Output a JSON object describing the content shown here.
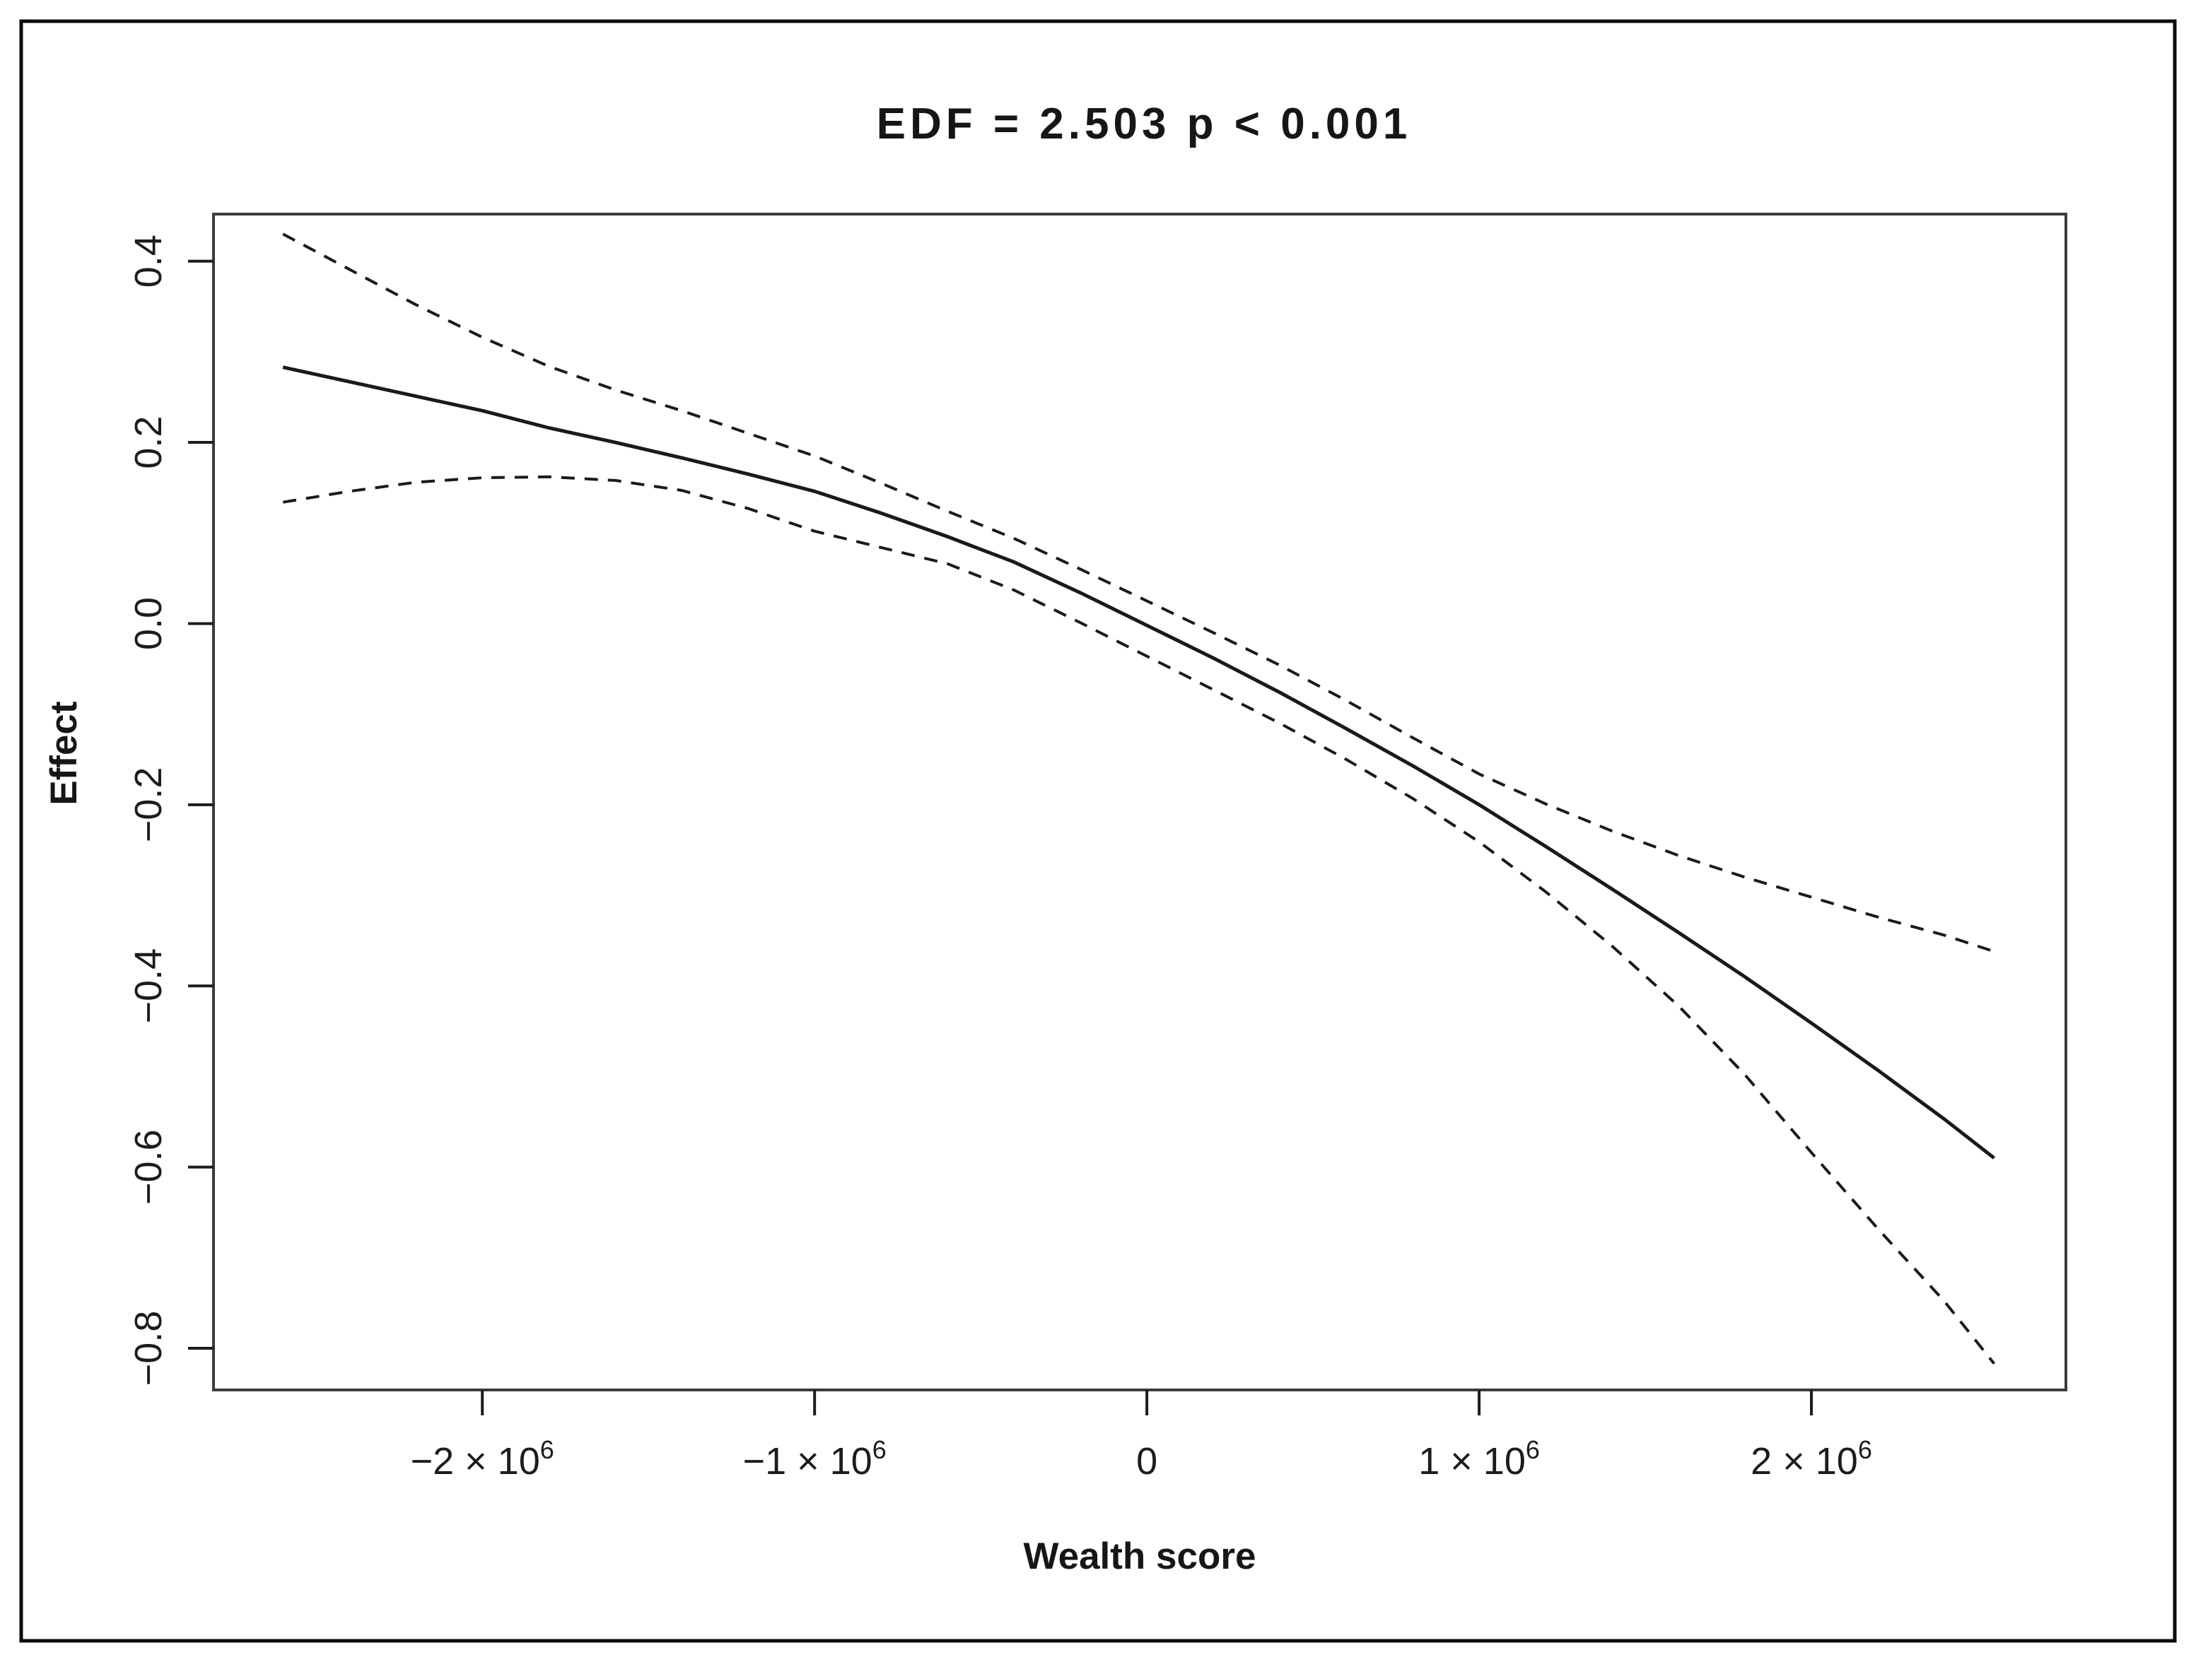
{
  "chart_data": {
    "type": "line",
    "title": "EDF = 2.503 p < 0.001",
    "xlabel": "Wealth score",
    "ylabel": "Effect",
    "legend": "none",
    "grid": false,
    "frame_box": true,
    "colors": {
      "line": "#1a1a1a",
      "frame": "#3c3c3c",
      "background": "#ffffff"
    },
    "xlim": [
      -2809000,
      2766000
    ],
    "ylim": [
      -0.846,
      0.452
    ],
    "x_ticks": [
      {
        "value": -2000000,
        "label": "−2 × 10",
        "sup": "6"
      },
      {
        "value": -1000000,
        "label": "−1 × 10",
        "sup": "6"
      },
      {
        "value": 0,
        "label": "0",
        "sup": ""
      },
      {
        "value": 1000000,
        "label": "1 × 10",
        "sup": "6"
      },
      {
        "value": 2000000,
        "label": "2 × 10",
        "sup": "6"
      }
    ],
    "y_ticks": [
      {
        "value": 0.4,
        "label": "0.4"
      },
      {
        "value": 0.2,
        "label": "0.2"
      },
      {
        "value": 0.0,
        "label": "0.0"
      },
      {
        "value": -0.2,
        "label": "−0.2"
      },
      {
        "value": -0.4,
        "label": "−0.4"
      },
      {
        "value": -0.6,
        "label": "−0.6"
      },
      {
        "value": -0.8,
        "label": "−0.8"
      }
    ],
    "series": [
      {
        "name": "smooth-estimate",
        "style": "solid",
        "x": [
          -2600000,
          -2400000,
          -2200000,
          -2000000,
          -1800000,
          -1600000,
          -1400000,
          -1200000,
          -1000000,
          -800000,
          -600000,
          -400000,
          -200000,
          0,
          200000,
          400000,
          600000,
          800000,
          1000000,
          1200000,
          1400000,
          1600000,
          1800000,
          2000000,
          2200000,
          2400000,
          2550000
        ],
        "y": [
          0.283,
          0.267,
          0.251,
          0.235,
          0.216,
          0.2,
          0.183,
          0.165,
          0.146,
          0.122,
          0.096,
          0.068,
          0.034,
          -0.002,
          -0.038,
          -0.076,
          -0.116,
          -0.157,
          -0.2,
          -0.246,
          -0.293,
          -0.341,
          -0.39,
          -0.441,
          -0.493,
          -0.547,
          -0.59
        ]
      },
      {
        "name": "upper-confidence-band",
        "style": "dashed",
        "x": [
          -2600000,
          -2400000,
          -2200000,
          -2000000,
          -1800000,
          -1600000,
          -1400000,
          -1200000,
          -1000000,
          -800000,
          -600000,
          -400000,
          -200000,
          0,
          200000,
          400000,
          600000,
          800000,
          1000000,
          1200000,
          1400000,
          1600000,
          1800000,
          2000000,
          2200000,
          2400000,
          2550000
        ],
        "y": [
          0.43,
          0.391,
          0.352,
          0.316,
          0.284,
          0.258,
          0.235,
          0.21,
          0.185,
          0.155,
          0.124,
          0.094,
          0.06,
          0.025,
          -0.01,
          -0.046,
          -0.085,
          -0.126,
          -0.166,
          -0.199,
          -0.229,
          -0.256,
          -0.28,
          -0.302,
          -0.324,
          -0.344,
          -0.362
        ]
      },
      {
        "name": "lower-confidence-band",
        "style": "dashed",
        "x": [
          -2600000,
          -2400000,
          -2200000,
          -2000000,
          -1800000,
          -1600000,
          -1400000,
          -1200000,
          -1000000,
          -800000,
          -600000,
          -400000,
          -200000,
          0,
          200000,
          400000,
          600000,
          800000,
          1000000,
          1200000,
          1400000,
          1600000,
          1800000,
          2000000,
          2200000,
          2400000,
          2550000
        ],
        "y": [
          0.134,
          0.146,
          0.156,
          0.161,
          0.162,
          0.158,
          0.147,
          0.127,
          0.102,
          0.084,
          0.066,
          0.037,
          0.001,
          -0.036,
          -0.073,
          -0.11,
          -0.15,
          -0.193,
          -0.241,
          -0.296,
          -0.356,
          -0.422,
          -0.498,
          -0.584,
          -0.668,
          -0.748,
          -0.817
        ]
      }
    ]
  }
}
